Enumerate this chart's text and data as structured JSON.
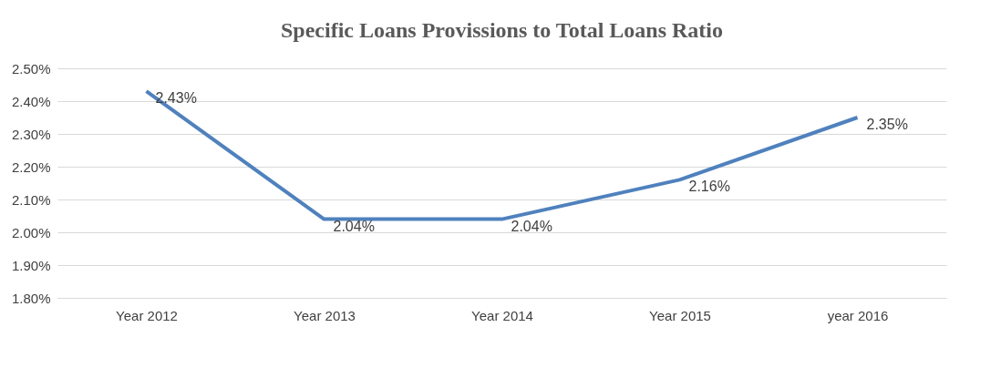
{
  "chart_data": {
    "type": "line",
    "title": "Specific Loans Provissions to Total Loans Ratio",
    "categories": [
      "Year 2012",
      "Year 2013",
      "Year 2014",
      "Year 2015",
      "year 2016"
    ],
    "series": [
      {
        "color": "#4f81bd",
        "values": [
          2.43,
          2.04,
          2.04,
          2.16,
          2.35
        ],
        "value_labels": [
          "2.43%",
          "2.04%",
          "2.04%",
          "2.16%",
          "2.35%"
        ]
      }
    ],
    "ylim": [
      1.8,
      2.5
    ],
    "yticks": [
      {
        "value": 1.8,
        "label": "1.80%"
      },
      {
        "value": 1.9,
        "label": "1.90%"
      },
      {
        "value": 2.0,
        "label": "2.00%"
      },
      {
        "value": 2.1,
        "label": "2.10%"
      },
      {
        "value": 2.2,
        "label": "2.20%"
      },
      {
        "value": 2.3,
        "label": "2.30%"
      },
      {
        "value": 2.4,
        "label": "2.40%"
      },
      {
        "value": 2.5,
        "label": "2.50%"
      }
    ],
    "grid": "y",
    "marker": "none"
  }
}
